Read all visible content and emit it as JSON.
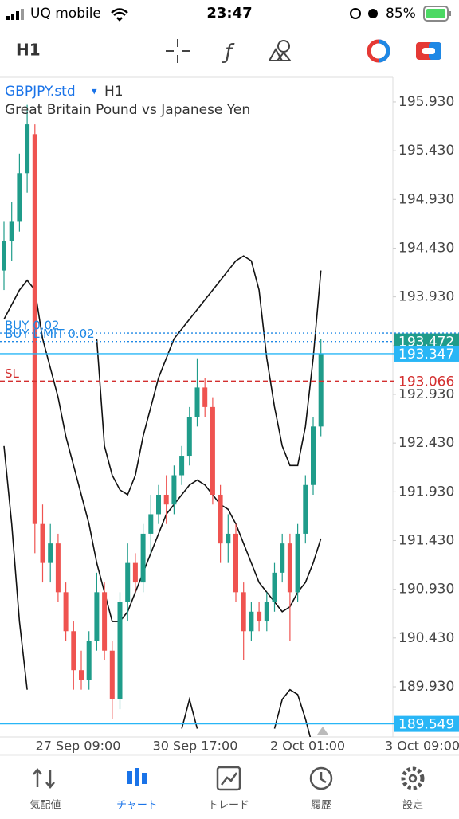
{
  "status_bar": {
    "carrier": "UQ mobile",
    "time": "23:47",
    "battery": "85%"
  },
  "toolbar": {
    "timeframe": "H1"
  },
  "chart_data": {
    "type": "candlestick",
    "symbol": "GBPJPY.std",
    "symbol_menu": "▾",
    "timeframe": "H1",
    "description": "Great Britain Pound vs Japanese Yen",
    "up_color": "#1f9c8a",
    "down_color": "#ef5350",
    "open": [
      194.2,
      194.5,
      194.7,
      195.2,
      195.6,
      191.6,
      191.2,
      191.4,
      190.9,
      190.5,
      190.1,
      190.0,
      190.4,
      190.9,
      190.3,
      189.8,
      190.8,
      191.2,
      191.0,
      191.5,
      191.7,
      191.9,
      191.8,
      192.1,
      192.3,
      192.7,
      193.0,
      192.8,
      191.9,
      191.4,
      191.5,
      190.9,
      190.5,
      190.7,
      190.6,
      190.8,
      191.1,
      191.4,
      190.9,
      191.5,
      192.0,
      192.6
    ],
    "high": [
      194.7,
      194.9,
      195.4,
      195.9,
      195.7,
      191.8,
      191.6,
      191.5,
      191.0,
      190.6,
      190.3,
      190.5,
      191.1,
      191.0,
      190.4,
      190.9,
      191.4,
      191.3,
      191.6,
      191.9,
      192.0,
      192.1,
      192.2,
      192.4,
      192.8,
      193.3,
      193.1,
      192.9,
      192.0,
      191.7,
      191.6,
      191.0,
      190.8,
      190.8,
      190.9,
      191.2,
      191.5,
      191.5,
      191.6,
      192.1,
      192.7,
      193.5
    ],
    "low": [
      194.0,
      194.3,
      194.6,
      195.0,
      191.3,
      191.0,
      191.0,
      190.8,
      190.4,
      189.9,
      189.9,
      189.9,
      190.3,
      190.2,
      189.6,
      189.7,
      190.6,
      190.9,
      190.9,
      191.3,
      191.6,
      191.6,
      191.7,
      192.0,
      192.2,
      192.6,
      192.7,
      191.8,
      191.2,
      191.2,
      190.8,
      190.2,
      190.4,
      190.5,
      190.5,
      190.7,
      191.0,
      190.4,
      190.8,
      191.4,
      191.9,
      192.5
    ],
    "close": [
      194.5,
      194.7,
      195.2,
      195.7,
      191.6,
      191.2,
      191.4,
      190.9,
      190.5,
      190.1,
      190.0,
      190.4,
      190.9,
      190.3,
      189.8,
      190.8,
      191.2,
      191.0,
      191.5,
      191.7,
      191.9,
      191.8,
      192.1,
      192.3,
      192.7,
      193.0,
      192.8,
      191.9,
      191.4,
      191.5,
      190.9,
      190.5,
      190.7,
      190.6,
      190.8,
      191.1,
      191.4,
      190.9,
      191.5,
      192.0,
      192.6,
      193.35
    ],
    "bands": [
      {
        "color": "#111111",
        "values": [
          null,
          null,
          null,
          null,
          null,
          null,
          null,
          null,
          null,
          null,
          null,
          null,
          193.5,
          192.4,
          192.1,
          191.95,
          191.9,
          192.1,
          192.5,
          192.8,
          193.1,
          193.3,
          193.5,
          193.6,
          193.7,
          193.8,
          193.9,
          194.0,
          194.1,
          194.2,
          194.3,
          194.35,
          194.3,
          194.0,
          193.3,
          192.8,
          192.4,
          192.2,
          192.2,
          192.6,
          193.3,
          194.2
        ]
      },
      {
        "color": "#111111",
        "values": [
          193.7,
          193.85,
          194.0,
          194.1,
          194.0,
          193.5,
          193.2,
          192.9,
          192.5,
          192.2,
          191.9,
          191.6,
          191.2,
          190.9,
          190.6,
          190.6,
          190.7,
          190.9,
          191.1,
          191.3,
          191.5,
          191.7,
          191.8,
          191.9,
          192.0,
          192.05,
          192.0,
          191.9,
          191.8,
          191.75,
          191.6,
          191.4,
          191.2,
          191.0,
          190.9,
          190.8,
          190.7,
          190.75,
          190.9,
          191.0,
          191.2,
          191.45
        ]
      },
      {
        "color": "#111111",
        "values": [
          192.4,
          191.6,
          190.6,
          189.9,
          null,
          null,
          null,
          null,
          null,
          null,
          null,
          null,
          null,
          null,
          null,
          null,
          null,
          null,
          null,
          null,
          null,
          null,
          null,
          189.5,
          189.8,
          189.5,
          null,
          null,
          null,
          null,
          null,
          null,
          null,
          null,
          null,
          189.5,
          189.8,
          189.9,
          189.85,
          189.6,
          189.3,
          null
        ]
      }
    ],
    "price_lines": [
      {
        "name": "BUY 0.02",
        "value": 193.559,
        "color": "#1e88e5",
        "style": "dotted"
      },
      {
        "name": "BUY LIMIT 0.02",
        "value": 193.472,
        "color": "#1e88e5",
        "style": "dotted",
        "tag_color": "#1f9c8a"
      },
      {
        "value": 193.347,
        "color": "#29b6f6",
        "style": "solid",
        "tag_color": "#29b6f6"
      },
      {
        "name": "SL",
        "value": 193.066,
        "color": "#d32f2f",
        "style": "dashed",
        "tag_color": "#ffffff"
      },
      {
        "value": 189.549,
        "color": "#29b6f6",
        "style": "solid",
        "tag_color": "#29b6f6"
      }
    ],
    "ylim": [
      189.415,
      196.183
    ],
    "yticks": [
      {
        "value": 195.93,
        "label": "195.930"
      },
      {
        "value": 195.43,
        "label": "195.430"
      },
      {
        "value": 194.93,
        "label": "194.930"
      },
      {
        "value": 194.43,
        "label": "194.430"
      },
      {
        "value": 193.93,
        "label": "193.930"
      },
      {
        "value": 193.43,
        "label": "193.430"
      },
      {
        "value": 192.93,
        "label": "192.930"
      },
      {
        "value": 192.43,
        "label": "192.430"
      },
      {
        "value": 191.93,
        "label": "191.930"
      },
      {
        "value": 191.43,
        "label": "191.430"
      },
      {
        "value": 190.93,
        "label": "190.930"
      },
      {
        "value": 190.43,
        "label": "190.430"
      },
      {
        "value": 189.93,
        "label": "189.930"
      }
    ],
    "xtick_labels": [
      "27 Sep 09:00",
      "30 Sep 17:00",
      "2 Oct 01:00",
      "3 Oct 09:00"
    ]
  },
  "tabs": [
    "気配値",
    "チャート",
    "トレード",
    "履歴",
    "設定"
  ]
}
